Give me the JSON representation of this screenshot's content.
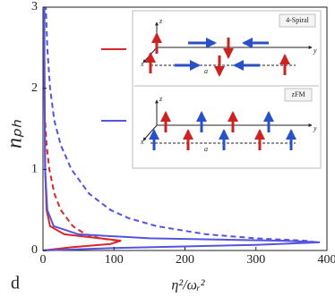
{
  "chart_data": {
    "type": "line",
    "xlabel": "η²/ωᵣ²",
    "ylabel": "nₚₕ",
    "panel_label": "d",
    "xlim": [
      0,
      400
    ],
    "ylim": [
      0,
      3
    ],
    "xticks": [
      0,
      100,
      200,
      300,
      400
    ],
    "yticks": [
      0,
      1,
      2,
      3
    ],
    "series": [
      {
        "name": "4-Spiral",
        "color": "#d62a2a",
        "dashed": false,
        "x": [
          0,
          40,
          95,
          110,
          80,
          30,
          10,
          5,
          3,
          2
        ],
        "values": [
          0,
          0.04,
          0.08,
          0.12,
          0.15,
          0.2,
          0.3,
          0.5,
          1,
          2.35
        ]
      },
      {
        "color": "#d62a2a",
        "dashed": true,
        "x": [
          105,
          80,
          60,
          42,
          25,
          16,
          9,
          5,
          3
        ],
        "values": [
          0.12,
          0.15,
          0.2,
          0.3,
          0.5,
          0.7,
          1,
          1.3,
          1.6
        ]
      },
      {
        "name": "zFM",
        "color": "#5454e0",
        "dashed": false,
        "x": [
          0,
          100,
          300,
          390,
          340,
          150,
          50,
          15,
          6,
          3,
          2,
          2
        ],
        "values": [
          0,
          0.03,
          0.07,
          0.1,
          0.12,
          0.15,
          0.2,
          0.3,
          0.5,
          1,
          2,
          3
        ]
      },
      {
        "color": "#5454e0",
        "dashed": true,
        "x": [
          385,
          370,
          300,
          230,
          160,
          120,
          95,
          65,
          40,
          25,
          16,
          10,
          6,
          4
        ],
        "values": [
          0.1,
          0.12,
          0.15,
          0.2,
          0.3,
          0.4,
          0.5,
          0.7,
          1,
          1.3,
          1.6,
          2,
          2.5,
          3
        ]
      }
    ],
    "inset": {
      "panels": [
        {
          "axes": [
            "z",
            "x",
            "y",
            "a"
          ]
        },
        {
          "axes": [
            "z",
            "x",
            "y",
            "a"
          ]
        }
      ]
    }
  }
}
